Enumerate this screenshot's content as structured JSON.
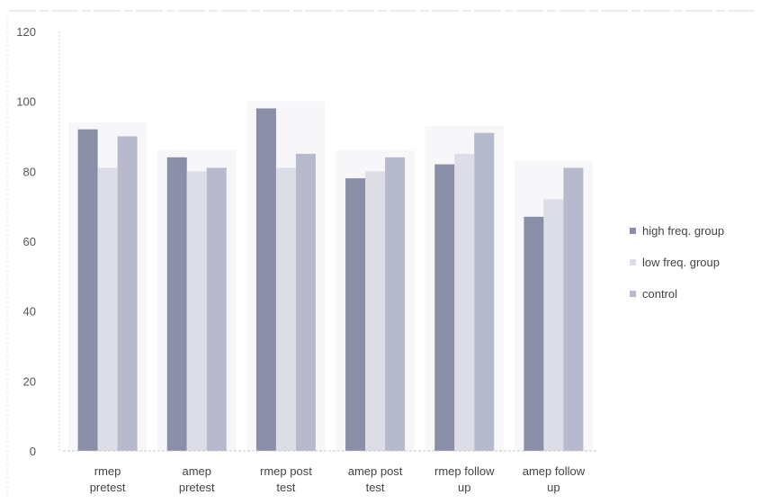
{
  "chart_data": {
    "type": "bar",
    "categories": [
      [
        "rmep",
        "pretest"
      ],
      [
        "amep",
        "pretest"
      ],
      [
        "rmep post",
        "test"
      ],
      [
        "amep post",
        "test"
      ],
      [
        "rmep follow",
        "up"
      ],
      [
        "amep follow",
        "up"
      ]
    ],
    "series": [
      {
        "name": "high freq. group",
        "color": "#8a8ea6",
        "values": [
          92,
          84,
          98,
          78,
          82,
          67
        ]
      },
      {
        "name": "low freq. group",
        "color": "#dcdde6",
        "values": [
          81,
          80,
          81,
          80,
          85,
          72
        ]
      },
      {
        "name": "control",
        "color": "#b7b9cc",
        "values": [
          90,
          81,
          85,
          84,
          91,
          81
        ]
      }
    ],
    "ylim": [
      0,
      120
    ],
    "yticks": [
      0,
      20,
      40,
      60,
      80,
      100,
      120
    ],
    "grid": false,
    "legend": "right"
  }
}
